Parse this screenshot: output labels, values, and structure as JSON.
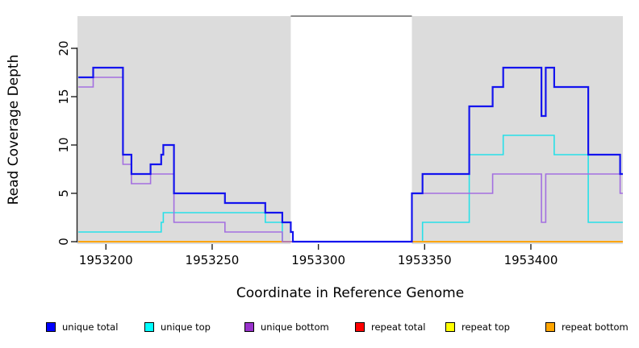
{
  "axes": {
    "x_label": "Coordinate in Reference Genome",
    "y_label": "Read Coverage Depth",
    "x_ticks": [
      1953200,
      1953250,
      1953300,
      1953350,
      1953400
    ],
    "y_ticks": [
      0,
      5,
      10,
      15,
      20
    ]
  },
  "legend": {
    "items": [
      {
        "label": "unique total",
        "color": "#0000FF"
      },
      {
        "label": "unique top",
        "color": "#00FFFF"
      },
      {
        "label": "unique bottom",
        "color": "#9932CC"
      },
      {
        "label": "repeat total",
        "color": "#FF0000"
      },
      {
        "label": "repeat top",
        "color": "#FFFF00"
      },
      {
        "label": "repeat bottom",
        "color": "#FFA500"
      }
    ]
  },
  "chart_data": {
    "type": "line",
    "subtype": "step-after",
    "title": "",
    "xlabel": "Coordinate in Reference Genome",
    "ylabel": "Read Coverage Depth",
    "xlim": [
      1953186.6,
      1953443.3
    ],
    "ylim": [
      0,
      23.3
    ],
    "grid": false,
    "legend_position": "bottom-horizontal",
    "shaded_regions": [
      {
        "x0": 1953186.6,
        "x1": 1953287,
        "color": "#DCDCDC"
      },
      {
        "x0": 1953344,
        "x1": 1953443.3,
        "color": "#DCDCDC"
      }
    ],
    "series": [
      {
        "name": "repeat top",
        "color": "#E8E800",
        "line_width": 1.5,
        "steps": [
          [
            1953187,
            0
          ],
          [
            1953443,
            0
          ]
        ]
      },
      {
        "name": "repeat total",
        "color": "#EE0000",
        "line_width": 1.5,
        "steps": [
          [
            1953187,
            0
          ],
          [
            1953443,
            0
          ]
        ]
      },
      {
        "name": "unique top",
        "color": "#27E0E8",
        "line_width": 1.6,
        "steps": [
          [
            1953187,
            1
          ],
          [
            1953226,
            2
          ],
          [
            1953227,
            3
          ],
          [
            1953275,
            2
          ],
          [
            1953283,
            0
          ],
          [
            1953349,
            2
          ],
          [
            1953371,
            9
          ],
          [
            1953387,
            11
          ],
          [
            1953411,
            9
          ],
          [
            1953427,
            2
          ],
          [
            1953443,
            2
          ]
        ]
      },
      {
        "name": "repeat bottom",
        "color": "#FFA500",
        "line_width": 2.0,
        "steps": [
          [
            1953187,
            0
          ],
          [
            1953443,
            0
          ]
        ]
      },
      {
        "name": "unique bottom",
        "color": "#A36FE0",
        "line_width": 1.6,
        "steps": [
          [
            1953187,
            16
          ],
          [
            1953194,
            17
          ],
          [
            1953208,
            8
          ],
          [
            1953212,
            6
          ],
          [
            1953221,
            7
          ],
          [
            1953232,
            2
          ],
          [
            1953256,
            1
          ],
          [
            1953283,
            0
          ],
          [
            1953344,
            5
          ],
          [
            1953382,
            7
          ],
          [
            1953405,
            2
          ],
          [
            1953407,
            7
          ],
          [
            1953442,
            5
          ],
          [
            1953443,
            5
          ]
        ]
      },
      {
        "name": "unique total",
        "color": "#1414EE",
        "line_width": 2.2,
        "steps": [
          [
            1953187,
            17
          ],
          [
            1953194,
            18
          ],
          [
            1953208,
            9
          ],
          [
            1953212,
            7
          ],
          [
            1953221,
            8
          ],
          [
            1953226,
            9
          ],
          [
            1953227,
            10
          ],
          [
            1953232,
            5
          ],
          [
            1953256,
            4
          ],
          [
            1953275,
            3
          ],
          [
            1953283,
            2
          ],
          [
            1953287,
            1
          ],
          [
            1953288,
            0
          ],
          [
            1953344,
            5
          ],
          [
            1953349,
            7
          ],
          [
            1953371,
            14
          ],
          [
            1953382,
            16
          ],
          [
            1953387,
            18
          ],
          [
            1953405,
            13
          ],
          [
            1953407,
            18
          ],
          [
            1953411,
            16
          ],
          [
            1953427,
            9
          ],
          [
            1953442,
            7
          ],
          [
            1953443,
            7
          ]
        ]
      }
    ]
  },
  "layout_colors": {
    "region_fill": "#DCDCDC",
    "box_top_line": "#666666",
    "axis_color": "#222222",
    "text_color": "#000000"
  }
}
